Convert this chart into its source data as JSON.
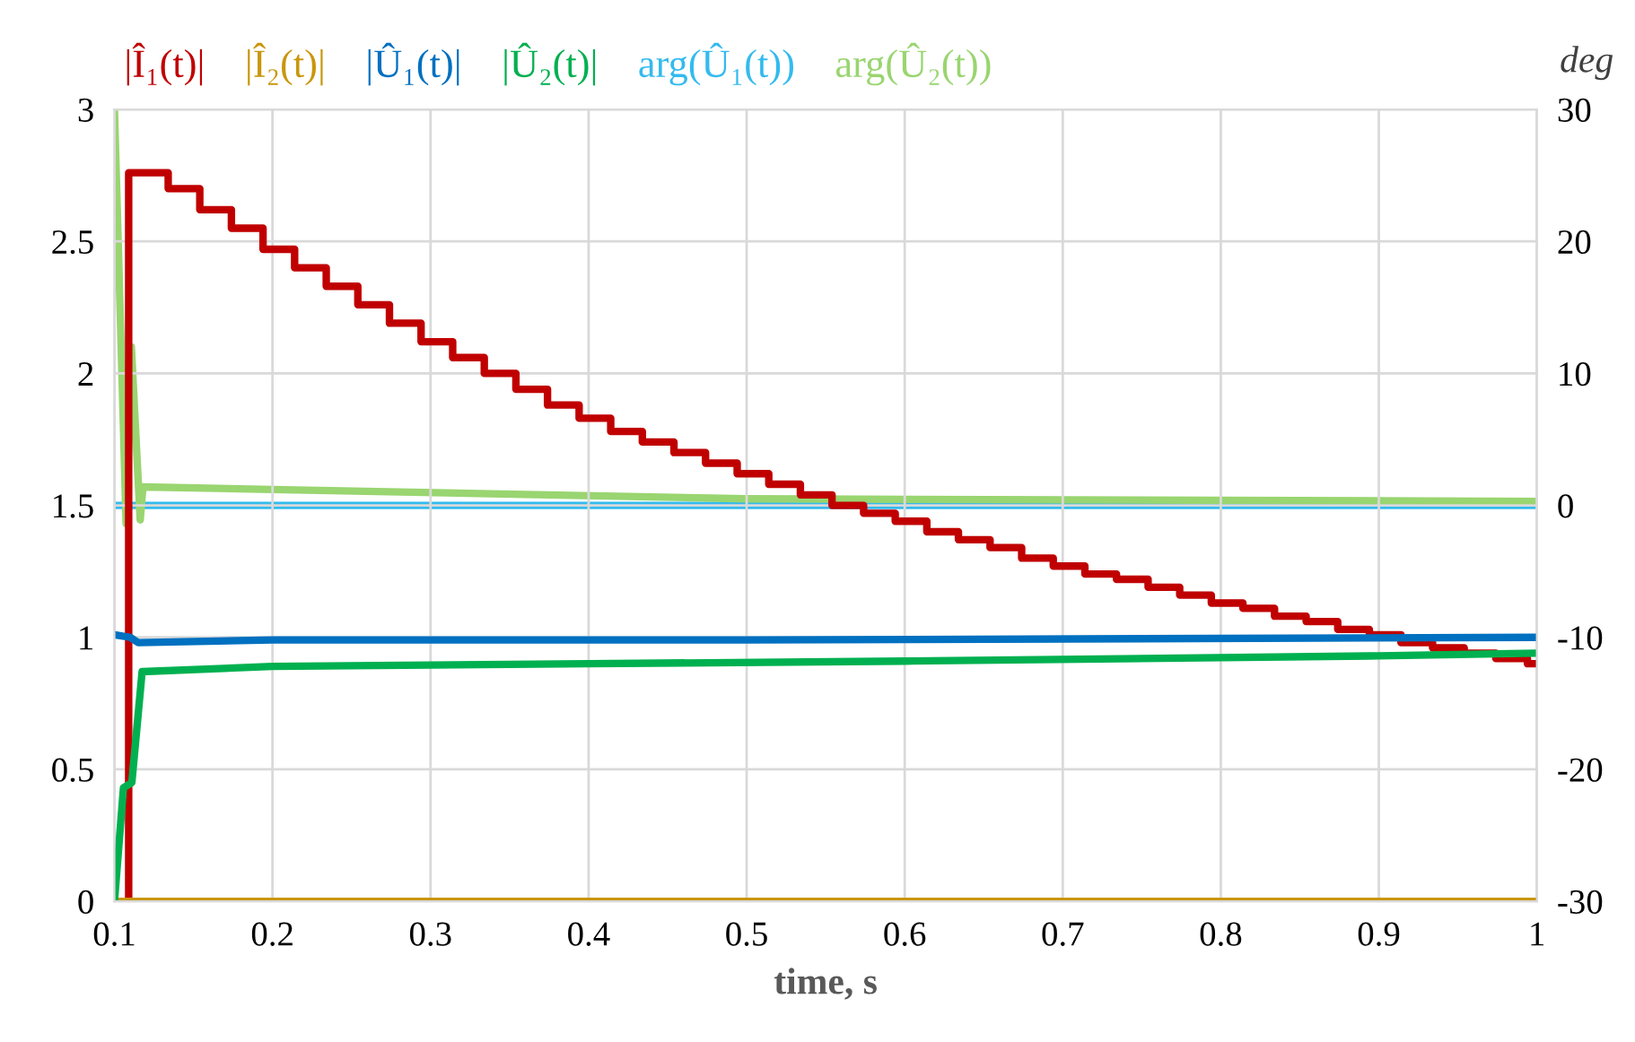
{
  "chart_data": {
    "type": "line",
    "xlabel": "time, s",
    "y2label": "deg",
    "xlim": [
      0.1,
      1
    ],
    "xticks": [
      0.1,
      0.2,
      0.3,
      0.4,
      0.5,
      0.6,
      0.7,
      0.8,
      0.9,
      1
    ],
    "ylim": [
      0,
      3
    ],
    "yticks": [
      0,
      0.5,
      1,
      1.5,
      2,
      2.5,
      3
    ],
    "y2lim": [
      -30,
      30
    ],
    "y2ticks": [
      -30,
      -20,
      -10,
      0,
      10,
      20,
      30
    ],
    "grid": true,
    "legend": "top",
    "marker": "none",
    "line_style": "solid",
    "series": [
      {
        "name": "|Î₁(t)|",
        "color": "#c00000",
        "type": "step",
        "x": [
          0.103,
          0.109,
          0.114,
          0.134,
          0.154,
          0.174,
          0.194,
          0.214,
          0.234,
          0.254,
          0.274,
          0.294,
          0.314,
          0.334,
          0.354,
          0.374,
          0.394,
          0.414,
          0.434,
          0.454,
          0.474,
          0.494,
          0.514,
          0.534,
          0.554,
          0.574,
          0.594,
          0.614,
          0.634,
          0.654,
          0.674,
          0.694,
          0.714,
          0.734,
          0.754,
          0.774,
          0.794,
          0.814,
          0.834,
          0.854,
          0.874,
          0.894,
          0.914,
          0.934,
          0.954,
          0.974,
          0.994,
          1.0
        ],
        "values": [
          0,
          2.76,
          2.76,
          2.7,
          2.62,
          2.55,
          2.47,
          2.4,
          2.33,
          2.26,
          2.19,
          2.12,
          2.06,
          2.0,
          1.94,
          1.88,
          1.83,
          1.78,
          1.74,
          1.7,
          1.66,
          1.62,
          1.58,
          1.54,
          1.5,
          1.47,
          1.44,
          1.4,
          1.37,
          1.34,
          1.3,
          1.27,
          1.24,
          1.22,
          1.19,
          1.16,
          1.13,
          1.11,
          1.08,
          1.06,
          1.03,
          1.01,
          0.98,
          0.96,
          0.94,
          0.92,
          0.9,
          0.9
        ]
      },
      {
        "name": "|Î₂(t)|",
        "color": "#c9960c",
        "x": [
          0.1,
          1.0
        ],
        "values": [
          0,
          0
        ]
      },
      {
        "name": "|Û₁(t)|",
        "color": "#0070c0",
        "x": [
          0.1,
          0.11,
          0.115,
          0.2,
          0.5,
          1.0
        ],
        "values": [
          1.01,
          1.0,
          0.98,
          0.99,
          0.99,
          1.0
        ]
      },
      {
        "name": "|Û₂(t)|",
        "color": "#00b050",
        "x": [
          0.1,
          0.1057,
          0.111,
          0.1175,
          0.2,
          0.4,
          0.6,
          0.9,
          1.0
        ],
        "values": [
          0,
          0.43,
          0.45,
          0.87,
          0.89,
          0.9,
          0.91,
          0.93,
          0.94
        ]
      },
      {
        "name": "arg(Û₁(t))",
        "color": "#33bbee",
        "axis": "y2",
        "x": [
          0.1,
          1.0
        ],
        "values": [
          0,
          0
        ]
      },
      {
        "name": "arg(Û₂(t))",
        "color": "#99d570",
        "axis": "y2",
        "x": [
          0.1,
          0.1074,
          0.1107,
          0.1163,
          0.118,
          0.2,
          0.5,
          1.0
        ],
        "values": [
          30,
          -1.4,
          12,
          -1.1,
          1.4,
          1.2,
          0.5,
          0.3
        ]
      }
    ]
  }
}
